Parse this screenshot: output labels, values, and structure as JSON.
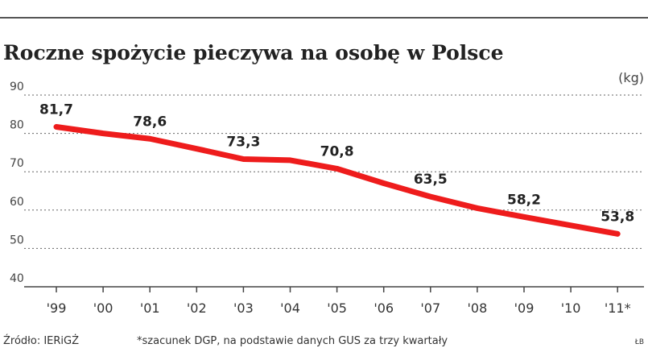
{
  "chart_data": {
    "type": "line",
    "title": "Roczne spożycie pieczywa na osobę w Polsce",
    "unit_label": "(kg)",
    "categories": [
      "'99",
      "'00",
      "'01",
      "'02",
      "'03",
      "'04",
      "'05",
      "'06",
      "'07",
      "'08",
      "'09",
      "'10",
      "'11*"
    ],
    "values": [
      81.7,
      80,
      78.6,
      76,
      73.3,
      73,
      70.8,
      67,
      63.5,
      60.5,
      58.2,
      56,
      53.8
    ],
    "value_labels": [
      "81,7",
      null,
      "78,6",
      null,
      "73,3",
      null,
      "70,8",
      null,
      "63,5",
      null,
      "58,2",
      null,
      "53,8"
    ],
    "color": "#ee1c1c",
    "ylim": [
      40,
      90
    ],
    "yticks": [
      40,
      50,
      60,
      70,
      80,
      90
    ],
    "grid": true,
    "source": "Źródło: IERiGŻ",
    "note": "*szacunek DGP, na podstawie danych GUS za trzy kwartały",
    "credit": "ŁB"
  }
}
